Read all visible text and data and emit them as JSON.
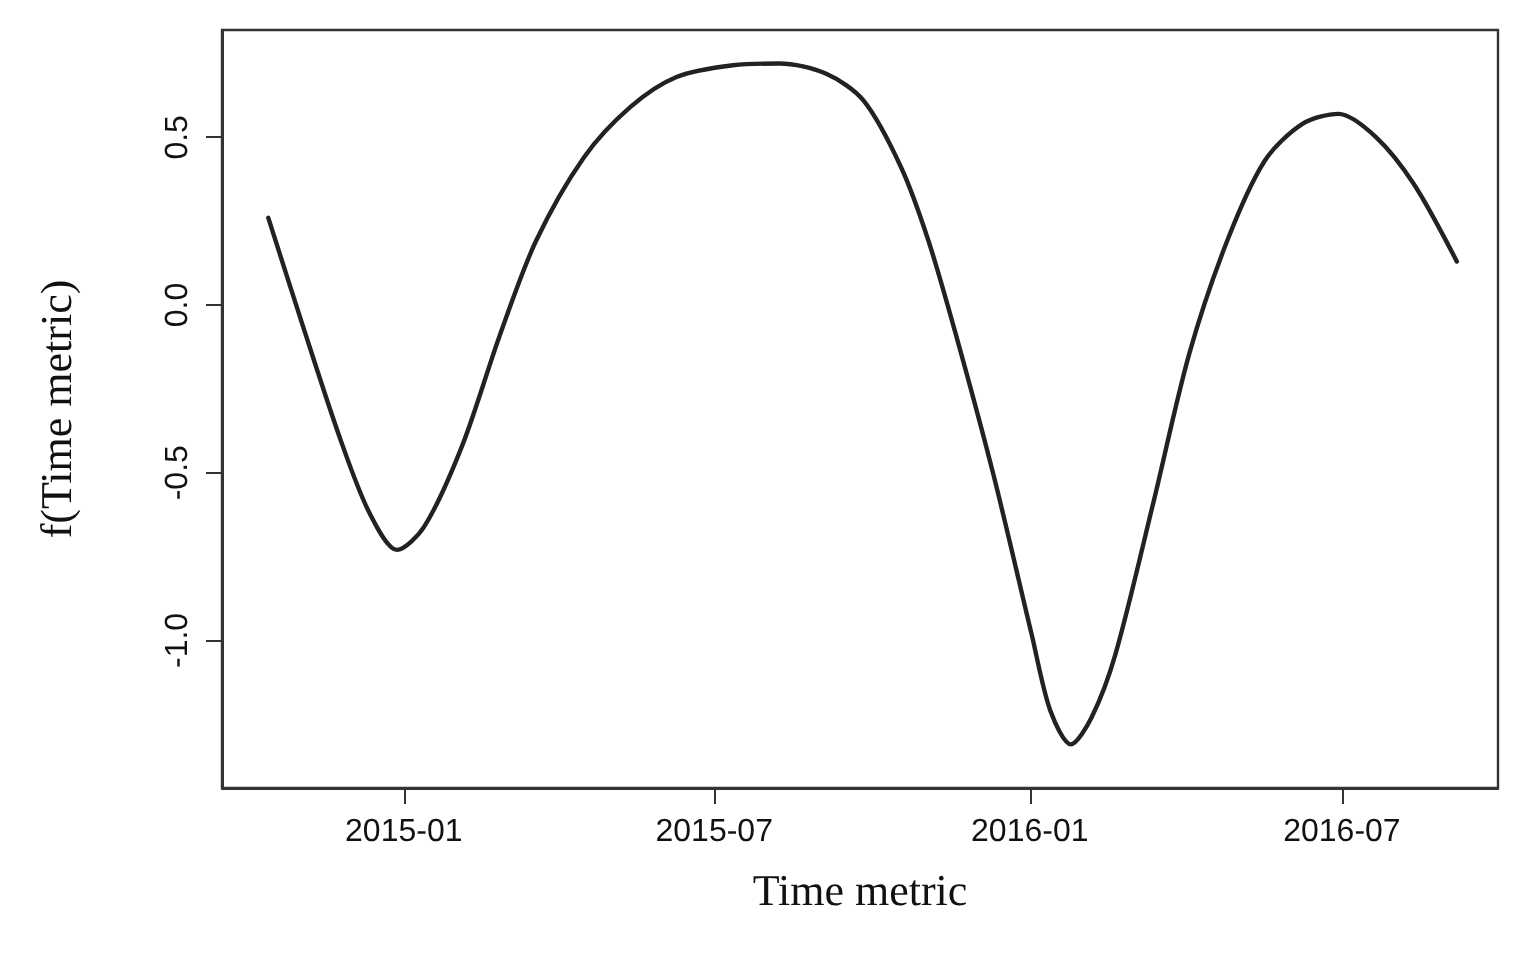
{
  "chart_data": {
    "type": "line",
    "xlabel": "Time metric",
    "ylabel": "f(Time metric)",
    "x": [
      "2014-10-14",
      "2014-11-03",
      "2014-11-25",
      "2014-12-12",
      "2014-12-28",
      "2015-01-13",
      "2015-02-04",
      "2015-02-26",
      "2015-03-19",
      "2015-04-16",
      "2015-05-13",
      "2015-06-09",
      "2015-07-12",
      "2015-08-08",
      "2015-09-04",
      "2015-09-26",
      "2015-10-18",
      "2015-11-03",
      "2015-11-19",
      "2015-12-11",
      "2016-01-02",
      "2016-01-13",
      "2016-01-25",
      "2016-02-06",
      "2016-02-20",
      "2016-03-13",
      "2016-04-03",
      "2016-04-25",
      "2016-05-17",
      "2016-06-08",
      "2016-06-29",
      "2016-07-21",
      "2016-08-12",
      "2016-09-06"
    ],
    "series": [
      {
        "color": "#222222",
        "values": [
          0.26,
          -0.06,
          -0.4,
          -0.62,
          -0.73,
          -0.66,
          -0.42,
          -0.09,
          0.19,
          0.44,
          0.59,
          0.68,
          0.715,
          0.72,
          0.69,
          0.61,
          0.41,
          0.19,
          -0.09,
          -0.51,
          -0.98,
          -1.21,
          -1.31,
          -1.23,
          -1.04,
          -0.59,
          -0.145,
          0.19,
          0.43,
          0.54,
          0.57,
          0.5,
          0.36,
          0.13
        ]
      }
    ],
    "xlim": [
      "2014-09-17",
      "2016-09-30"
    ],
    "xticks": [
      "2015-01",
      "2015-07",
      "2016-01",
      "2016-07"
    ],
    "ylim": [
      -1.44,
      0.82
    ],
    "yticks": [
      {
        "value": 0.5,
        "label": "0.5"
      },
      {
        "value": 0,
        "label": "0.0"
      },
      {
        "value": -0.5,
        "label": "-0.5"
      },
      {
        "value": -1,
        "label": "-1.0"
      }
    ],
    "grid": false,
    "marker": "none",
    "line_style": "solid"
  }
}
